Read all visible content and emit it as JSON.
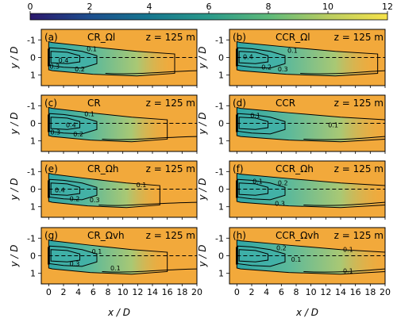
{
  "chart_data": {
    "type": "heatmap",
    "colorbar": {
      "ticks": [
        "0",
        "2",
        "4",
        "6",
        "8",
        "10",
        "12"
      ],
      "range": [
        0,
        12
      ],
      "colors": [
        "#2a186c",
        "#1d4f8e",
        "#16768f",
        "#2a9a8a",
        "#5fba7a",
        "#b8cc62",
        "#f7e34a"
      ]
    },
    "background_color": "#f2a93b",
    "wake_color": "#7ec6a0",
    "wake_core_color": "#3fb0a8",
    "x_axis": {
      "label": "x / D",
      "ticks": [
        "0",
        "2",
        "4",
        "6",
        "8",
        "10",
        "12",
        "14",
        "16",
        "18",
        "20"
      ],
      "range": [
        -1,
        20
      ]
    },
    "y_axis": {
      "label": "y / D",
      "ticks": [
        "-1",
        "0",
        "1"
      ],
      "range": [
        -1.6,
        1.6
      ],
      "inverted": true
    },
    "contour_levels": [
      "0.1",
      "0.2",
      "0.3",
      "0.4"
    ],
    "panels": [
      {
        "tag": "(a)",
        "case": "CR_Ωl",
        "height": "z = 125 m",
        "wake_length": 17,
        "labels": [
          [
            "0.1",
            5.8,
            -0.5
          ],
          [
            "0.4",
            2.0,
            0.15
          ],
          [
            "0.3",
            0.8,
            0.5
          ],
          [
            "0.2",
            4.2,
            0.65
          ]
        ]
      },
      {
        "tag": "(b)",
        "case": "CCR_Ωl",
        "height": "z = 125 m",
        "wake_length": 19,
        "labels": [
          [
            "0.1",
            7.5,
            -0.4
          ],
          [
            "0.4",
            1.5,
            -0.05
          ],
          [
            "0.2",
            4.0,
            0.55
          ],
          [
            "0.3",
            6.2,
            0.65
          ]
        ]
      },
      {
        "tag": "(c)",
        "case": "CR",
        "height": "z = 125 m",
        "wake_length": 16,
        "labels": [
          [
            "0.1",
            5.5,
            -0.55
          ],
          [
            "0.4",
            3.0,
            0.1
          ],
          [
            "0.3",
            0.9,
            0.5
          ],
          [
            "0.2",
            4.0,
            0.6
          ]
        ]
      },
      {
        "tag": "(d)",
        "case": "CCR",
        "height": "z = 125 m",
        "wake_length": 20,
        "labels": [
          [
            "0.1",
            2.5,
            -0.45
          ],
          [
            "0.1",
            13.0,
            0.1
          ]
        ]
      },
      {
        "tag": "(e)",
        "case": "CR_Ωh",
        "height": "z = 125 m",
        "wake_length": 15,
        "labels": [
          [
            "0.1",
            12.5,
            -0.25
          ],
          [
            "0.4",
            1.5,
            0.05
          ],
          [
            "0.2",
            3.5,
            0.55
          ],
          [
            "0.3",
            6.2,
            0.6
          ]
        ]
      },
      {
        "tag": "(f)",
        "case": "CCR_Ωh",
        "height": "z = 125 m",
        "wake_length": 20,
        "labels": [
          [
            "0.1",
            2.8,
            -0.45
          ],
          [
            "0.2",
            6.2,
            -0.35
          ],
          [
            "0.3",
            5.8,
            0.8
          ]
        ]
      },
      {
        "tag": "(g)",
        "case": "CR_Ωvh",
        "height": "z = 125 m",
        "wake_length": 16,
        "labels": [
          [
            "0.1",
            6.5,
            -0.25
          ],
          [
            "0.3",
            3.5,
            0.45
          ],
          [
            "0.1",
            9.0,
            0.7
          ]
        ]
      },
      {
        "tag": "(h)",
        "case": "CCR_Ωvh",
        "height": "z = 125 m",
        "wake_length": 20,
        "labels": [
          [
            "0.1",
            15.0,
            -0.35
          ],
          [
            "0.2",
            6.0,
            -0.45
          ],
          [
            "0.1",
            8.0,
            0.2
          ],
          [
            "0.1",
            15.0,
            0.85
          ]
        ]
      }
    ]
  }
}
